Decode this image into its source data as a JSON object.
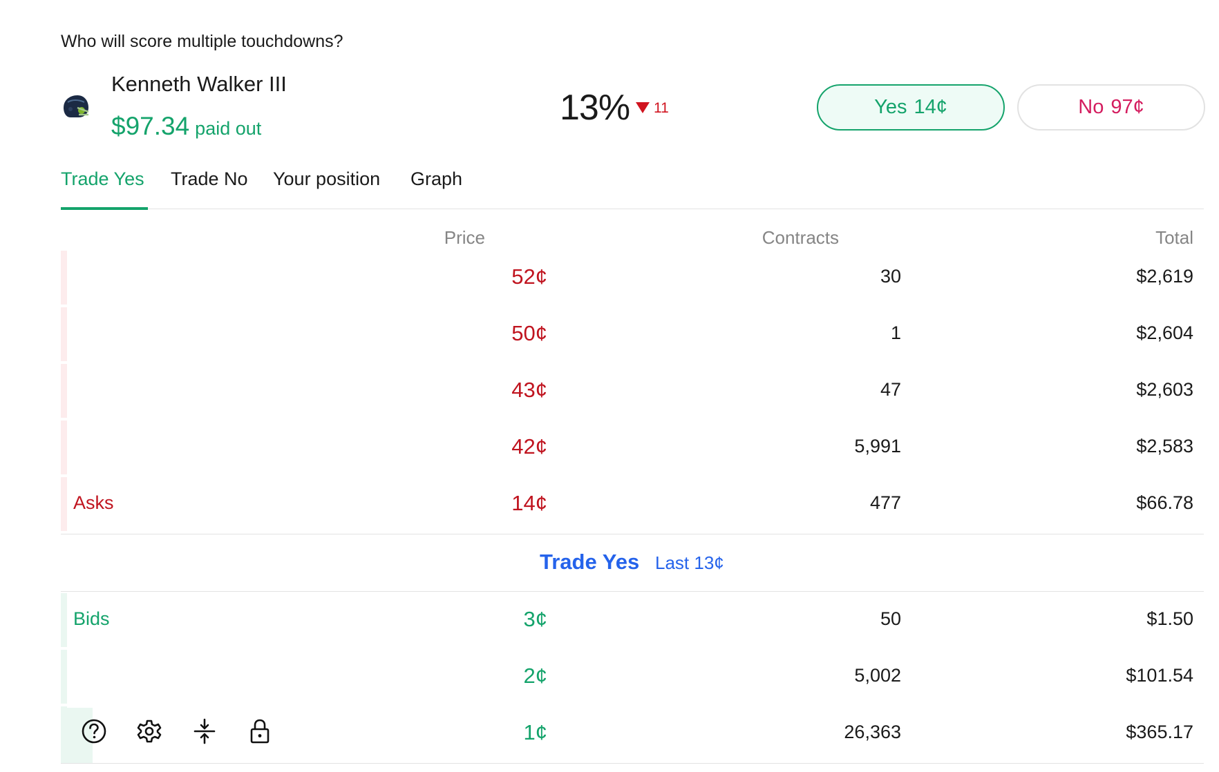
{
  "market": {
    "question": "Who will score multiple touchdowns?",
    "player_name": "Kenneth Walker III",
    "helmet_icon": "seahawks-helmet-icon",
    "paid_amount": "$97.34",
    "paid_suffix": "paid out",
    "probability": "13%",
    "change": "11",
    "change_direction": "down",
    "yes_label": "Yes",
    "yes_price": "14¢",
    "no_label": "No",
    "no_price": "97¢"
  },
  "tabs": [
    {
      "label": "Trade Yes",
      "active": true
    },
    {
      "label": "Trade No",
      "active": false
    },
    {
      "label": "Your position",
      "active": false
    },
    {
      "label": "Graph",
      "active": false
    }
  ],
  "orderbook": {
    "columns": {
      "price": "Price",
      "contracts": "Contracts",
      "total": "Total"
    },
    "asks_label": "Asks",
    "bids_label": "Bids",
    "asks": [
      {
        "price": "52¢",
        "contracts": "30",
        "total": "$2,619"
      },
      {
        "price": "50¢",
        "contracts": "1",
        "total": "$2,604"
      },
      {
        "price": "43¢",
        "contracts": "47",
        "total": "$2,603"
      },
      {
        "price": "42¢",
        "contracts": "5,991",
        "total": "$2,583"
      },
      {
        "price": "14¢",
        "contracts": "477",
        "total": "$66.78"
      }
    ],
    "spread_label": "Trade Yes",
    "last_label": "Last 13¢",
    "bids": [
      {
        "price": "3¢",
        "contracts": "50",
        "total": "$1.50"
      },
      {
        "price": "2¢",
        "contracts": "5,002",
        "total": "$101.54"
      },
      {
        "price": "1¢",
        "contracts": "26,363",
        "total": "$365.17"
      }
    ]
  },
  "toolbar": {
    "icons": [
      "help-icon",
      "settings-gear-icon",
      "compress-vertical-icon",
      "lock-icon"
    ]
  },
  "colors": {
    "yes_green": "#14a36b",
    "no_pink": "#d41d5f",
    "ask_red": "#c0141f",
    "link_blue": "#2563eb"
  }
}
